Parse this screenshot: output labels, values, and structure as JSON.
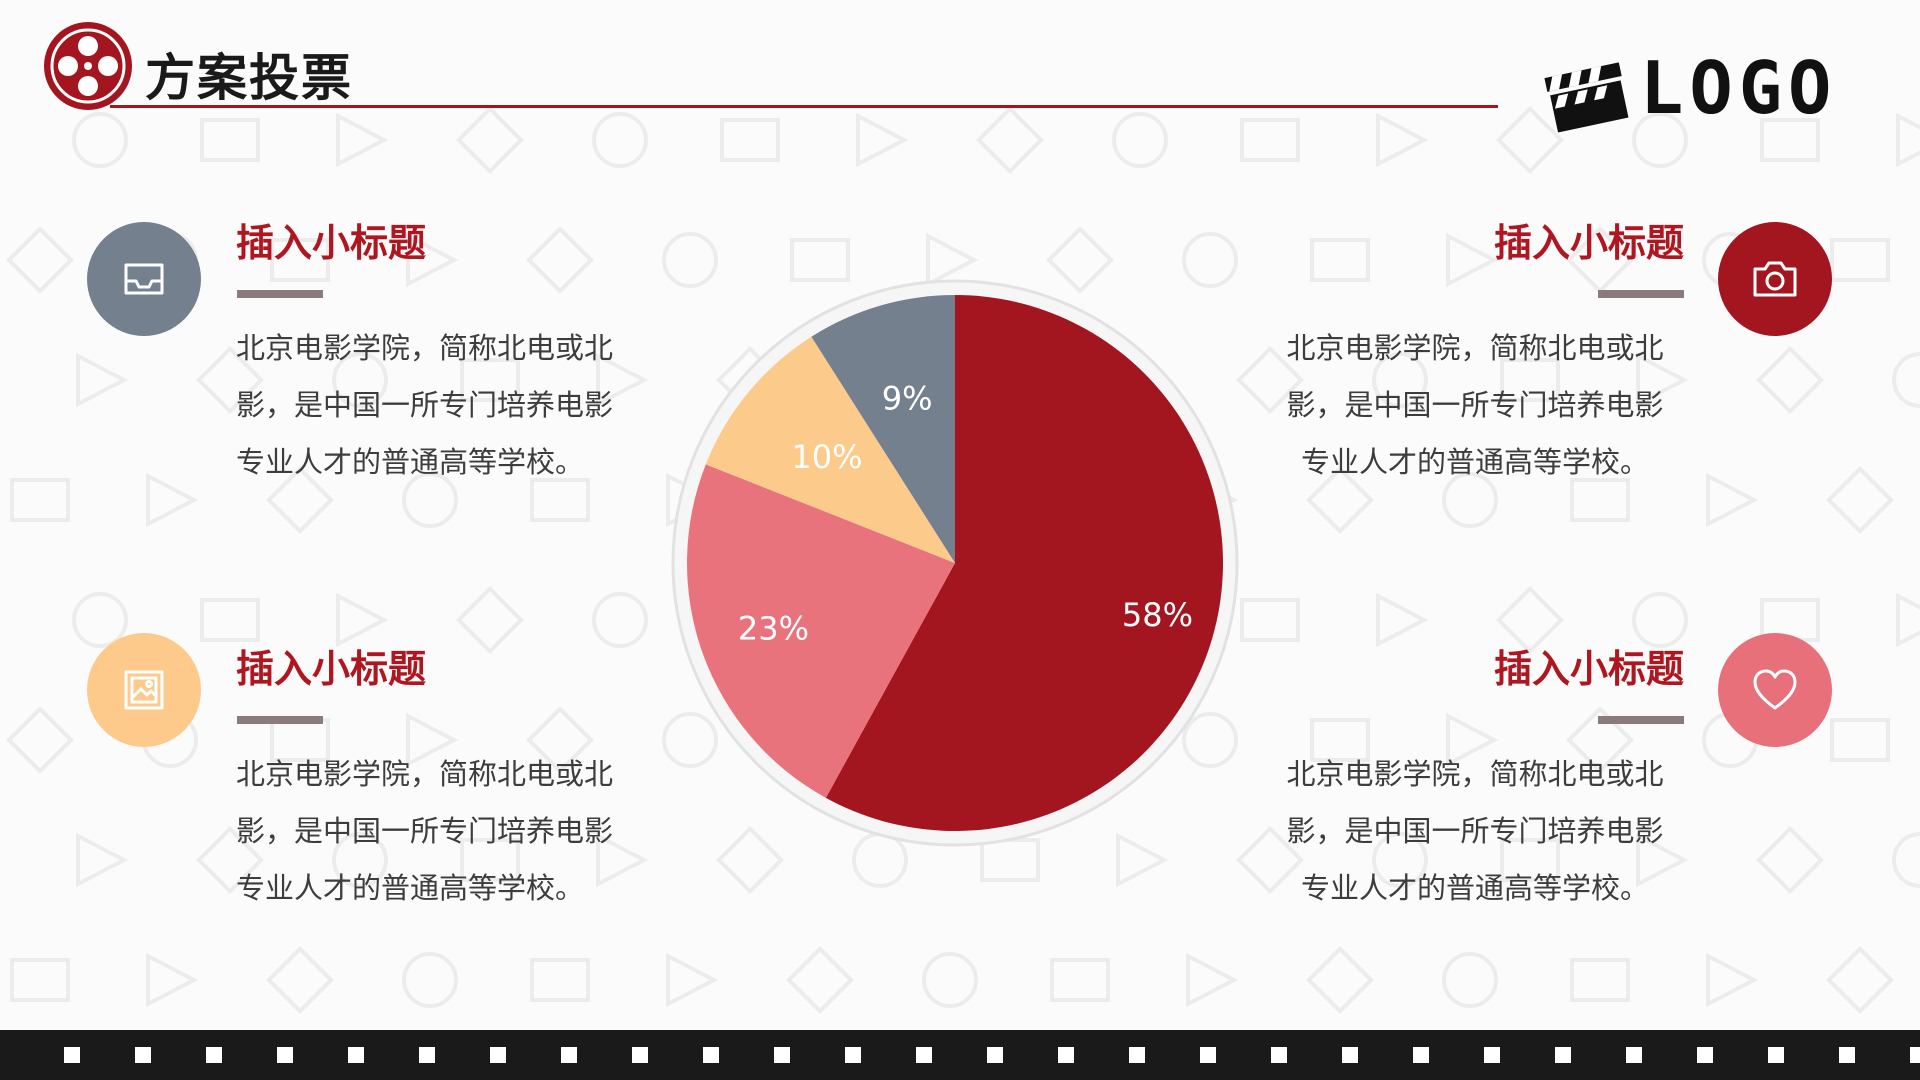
{
  "header": {
    "title": "方案投票",
    "logo_text": "LOGO"
  },
  "blocks": [
    {
      "id": "top-left",
      "icon": "inbox-tray-icon",
      "icon_color": "#75808f",
      "title": "插入小标题",
      "lines": [
        "北京电影学院，简称北电或北",
        "影，是中国一所专门培养电影",
        "专业人才的普通高等学校。"
      ]
    },
    {
      "id": "bottom-left",
      "icon": "image-icon",
      "icon_color": "#fdca8c",
      "title": "插入小标题",
      "lines": [
        "北京电影学院，简称北电或北",
        "影，是中国一所专门培养电影",
        "专业人才的普通高等学校。"
      ]
    },
    {
      "id": "top-right",
      "icon": "camera-icon",
      "icon_color": "#a3151f",
      "title": "插入小标题",
      "lines": [
        "北京电影学院，简称北电或北",
        "影，是中国一所专门培养电影",
        "专业人才的普通高等学校。"
      ]
    },
    {
      "id": "bottom-right",
      "icon": "heart-icon",
      "icon_color": "#e8707a",
      "title": "插入小标题",
      "lines": [
        "北京电影学院，简称北电或北",
        "影，是中国一所专门培养电影",
        "专业人才的普通高等学校。"
      ]
    }
  ],
  "colors": {
    "accent": "#a3151f",
    "title_red": "#b0161f",
    "bar_gray": "#8b7b7d"
  },
  "chart_data": {
    "type": "pie",
    "title": "",
    "slices": [
      {
        "value": 58,
        "label": "58%",
        "color": "#a3151f"
      },
      {
        "value": 23,
        "label": "23%",
        "color": "#e8737c"
      },
      {
        "value": 10,
        "label": "10%",
        "color": "#fccb8b"
      },
      {
        "value": 9,
        "label": "9%",
        "color": "#75808f"
      }
    ],
    "start": "12 o'clock",
    "direction": "clockwise"
  }
}
